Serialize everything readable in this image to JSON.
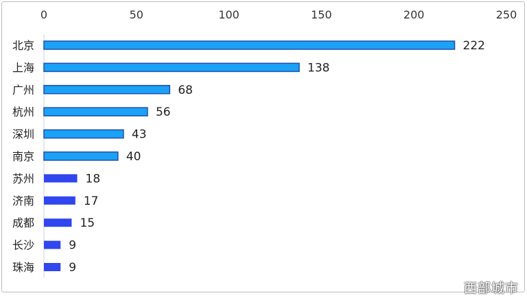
{
  "chart_data": {
    "type": "bar",
    "orientation": "horizontal",
    "categories": [
      "北京",
      "上海",
      "广州",
      "杭州",
      "深圳",
      "南京",
      "苏州",
      "济南",
      "成都",
      "长沙",
      "珠海"
    ],
    "values": [
      222,
      138,
      68,
      56,
      43,
      40,
      18,
      17,
      15,
      9,
      9
    ],
    "data_labels": [
      "222",
      "138",
      "68",
      "56",
      "43",
      "40",
      "18",
      "17",
      "15",
      "9",
      "9"
    ],
    "xlim": [
      0,
      250
    ],
    "x_ticks": [
      0,
      50,
      100,
      150,
      200,
      250
    ],
    "x_tick_labels": [
      "0",
      "50",
      "100",
      "150",
      "200",
      "250"
    ],
    "x_axis_position": "top",
    "grid": false,
    "legend": "none",
    "colors": {
      "first_group_fill": "#1ba1f5",
      "first_group_border": "#1f4fae",
      "second_group_fill": "#3146ee",
      "axis_line": "#c8d2e0",
      "label_text": "#222222",
      "tick_text": "#333333"
    },
    "bar_groups": [
      "first",
      "first",
      "first",
      "first",
      "first",
      "first",
      "second",
      "second",
      "second",
      "second",
      "second"
    ]
  },
  "watermark": {
    "text": "西部城市"
  }
}
